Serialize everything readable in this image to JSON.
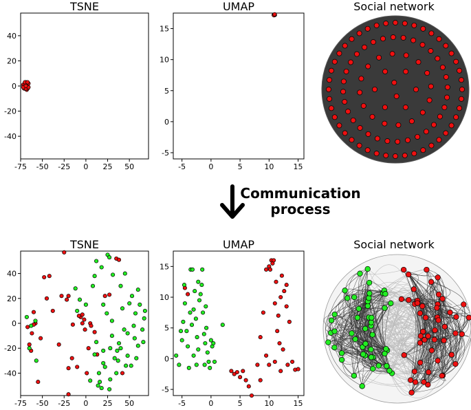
{
  "process": {
    "line1": "Communication",
    "line2": "process",
    "arrow_icon": "down-arrow-icon"
  },
  "colors": {
    "red": "#ee1111",
    "green": "#22ee22",
    "edge_dark": "#333333",
    "edge_light": "#bbbbbb",
    "network_fill": "#3a3a3a",
    "stroke": "#000000"
  },
  "chart_data": [
    {
      "id": "tsne_before",
      "type": "scatter",
      "title": "TSNE",
      "xlim": [
        -75,
        72
      ],
      "ylim": [
        -58,
        58
      ],
      "xticks": [
        -75,
        -50,
        -25,
        0,
        25,
        50
      ],
      "yticks": [
        -40,
        -20,
        0,
        20,
        40
      ],
      "series": [
        {
          "name": "red",
          "points": [
            [
              -71,
              0
            ],
            [
              -70,
              2
            ],
            [
              -69,
              -1
            ],
            [
              -68,
              1
            ],
            [
              -70,
              -2
            ],
            [
              -67,
              0
            ],
            [
              -72,
              1
            ],
            [
              -69,
              3
            ],
            [
              -68,
              -3
            ],
            [
              -66,
              2
            ],
            [
              -71,
              -2
            ],
            [
              -67,
              -2
            ],
            [
              -70,
              1
            ],
            [
              -69,
              -2
            ],
            [
              -68,
              0
            ],
            [
              -66,
              -1
            ],
            [
              -70,
              3
            ],
            [
              -67,
              3
            ],
            [
              -72,
              -1
            ],
            [
              -69,
              0
            ]
          ]
        }
      ]
    },
    {
      "id": "umap_before",
      "type": "scatter",
      "title": "UMAP",
      "xlim": [
        -6.5,
        16
      ],
      "ylim": [
        -6,
        17.5
      ],
      "xticks": [
        -5,
        0,
        5,
        10,
        15
      ],
      "yticks": [
        -5,
        0,
        5,
        10,
        15
      ],
      "series": [
        {
          "name": "red",
          "points": [
            [
              10.8,
              17.2
            ],
            [
              10.9,
              17.25
            ],
            [
              11.0,
              17.2
            ],
            [
              10.85,
              17.15
            ],
            [
              10.95,
              17.3
            ]
          ]
        }
      ]
    },
    {
      "id": "network_before",
      "type": "network",
      "title": "Social network",
      "node_count": 100,
      "groups": [
        {
          "name": "red",
          "count": 100
        }
      ]
    },
    {
      "id": "tsne_after",
      "type": "scatter",
      "title": "TSNE",
      "xlim": [
        -75,
        72
      ],
      "ylim": [
        -58,
        58
      ],
      "xticks": [
        -75,
        -50,
        -25,
        0,
        25,
        50
      ],
      "yticks": [
        -40,
        -20,
        0,
        20,
        40
      ],
      "series": [
        {
          "name": "red",
          "points": [
            [
              -60,
              9
            ],
            [
              -48,
              37
            ],
            [
              -42,
              38
            ],
            [
              -31,
              -17
            ],
            [
              -22,
              19
            ],
            [
              -20,
              22
            ],
            [
              -20,
              -36
            ],
            [
              -16,
              -28
            ],
            [
              -10,
              -35
            ],
            [
              -6,
              5
            ],
            [
              -4,
              0
            ],
            [
              -2,
              3
            ],
            [
              -1,
              -5
            ],
            [
              3,
              -20
            ],
            [
              5,
              0
            ],
            [
              6,
              -2
            ],
            [
              27,
              23
            ],
            [
              35,
              52
            ],
            [
              38,
              51
            ],
            [
              42,
              -40
            ],
            [
              -65,
              -17
            ],
            [
              -63,
              -22
            ],
            [
              -62,
              -8
            ],
            [
              -58,
              0
            ],
            [
              -55,
              -47
            ],
            [
              -52,
              -12
            ],
            [
              -45,
              20
            ],
            [
              -38,
              10
            ],
            [
              -25,
              57
            ],
            [
              -20,
              -57
            ],
            [
              -15,
              -1
            ],
            [
              -8,
              6
            ],
            [
              -4,
              7
            ],
            [
              10,
              -7
            ],
            [
              13,
              -25
            ],
            [
              22,
              22
            ],
            [
              -60,
              -1
            ],
            [
              -28,
              22
            ],
            [
              1,
              -40
            ],
            [
              -67,
              -3
            ]
          ]
        },
        {
          "name": "green",
          "points": [
            [
              -68,
              5
            ],
            [
              -63,
              -2
            ],
            [
              -58,
              2
            ],
            [
              -57,
              -30
            ],
            [
              -65,
              -20
            ],
            [
              -12,
              28
            ],
            [
              -7,
              19
            ],
            [
              0,
              15
            ],
            [
              10,
              -25
            ],
            [
              12,
              -15
            ],
            [
              14,
              -50
            ],
            [
              16,
              -47
            ],
            [
              18,
              -52
            ],
            [
              20,
              -32
            ],
            [
              22,
              -35
            ],
            [
              25,
              55
            ],
            [
              27,
              -53
            ],
            [
              28,
              -45
            ],
            [
              30,
              -10
            ],
            [
              33,
              -28
            ],
            [
              36,
              -22
            ],
            [
              37,
              -30
            ],
            [
              40,
              -20
            ],
            [
              42,
              12
            ],
            [
              44,
              -5
            ],
            [
              46,
              -34
            ],
            [
              48,
              -26
            ],
            [
              50,
              16
            ],
            [
              53,
              22
            ],
            [
              55,
              -2
            ],
            [
              57,
              8
            ],
            [
              58,
              -28
            ],
            [
              60,
              -18
            ],
            [
              62,
              15
            ],
            [
              65,
              -5
            ],
            [
              67,
              4
            ],
            [
              68,
              10
            ],
            [
              12,
              50
            ],
            [
              18,
              45
            ],
            [
              27,
              53
            ],
            [
              31,
              39
            ],
            [
              24,
              8
            ],
            [
              38,
              -16
            ],
            [
              45,
              40
            ],
            [
              8,
              30
            ],
            [
              5,
              -46
            ],
            [
              15,
              -40
            ],
            [
              20,
              -22
            ],
            [
              30,
              2
            ],
            [
              52,
              -34
            ],
            [
              56,
              -12
            ],
            [
              60,
              27
            ],
            [
              66,
              -15
            ],
            [
              -10,
              10
            ],
            [
              10,
              38
            ],
            [
              35,
              -40
            ],
            [
              20,
              15
            ],
            [
              48,
              -8
            ],
            [
              28,
              -20
            ],
            [
              40,
              30
            ]
          ]
        }
      ]
    },
    {
      "id": "umap_after",
      "type": "scatter",
      "title": "UMAP",
      "xlim": [
        -6.5,
        16
      ],
      "ylim": [
        -6,
        17.5
      ],
      "xticks": [
        -5,
        0,
        5,
        10,
        15
      ],
      "yticks": [
        -5,
        0,
        5,
        10,
        15
      ],
      "series": [
        {
          "name": "red",
          "points": [
            [
              -4.5,
              11.5
            ],
            [
              -4,
              10.5
            ],
            [
              3.5,
              -2
            ],
            [
              4,
              -2.5
            ],
            [
              4.5,
              -2.2
            ],
            [
              5,
              -3
            ],
            [
              5.5,
              -2
            ],
            [
              6,
              -3.5
            ],
            [
              6.5,
              -4.5
            ],
            [
              7,
              -6
            ],
            [
              8,
              -1
            ],
            [
              8.5,
              3.5
            ],
            [
              9,
              7.5
            ],
            [
              9.5,
              0.5
            ],
            [
              10,
              15
            ],
            [
              10.2,
              14.5
            ],
            [
              10.4,
              16
            ],
            [
              10.6,
              15.5
            ],
            [
              10.8,
              16
            ],
            [
              11,
              9
            ],
            [
              11.2,
              12.5
            ],
            [
              11.4,
              4.5
            ],
            [
              11.6,
              7
            ],
            [
              11.8,
              2.5
            ],
            [
              12,
              10
            ],
            [
              12.2,
              13.5
            ],
            [
              12.4,
              1.5
            ],
            [
              12.6,
              11
            ],
            [
              13,
              8.5
            ],
            [
              13.2,
              -1
            ],
            [
              13.5,
              6
            ],
            [
              14,
              -0.5
            ],
            [
              14.5,
              -1.8
            ],
            [
              15,
              -1.7
            ],
            [
              10,
              -1
            ],
            [
              11,
              -0.5
            ],
            [
              12,
              -2
            ],
            [
              9.5,
              14.5
            ],
            [
              13,
              12
            ],
            [
              8.5,
              -3.5
            ]
          ]
        },
        {
          "name": "green",
          "points": [
            [
              -6,
              0.5
            ],
            [
              -5.5,
              -1
            ],
            [
              -5,
              3
            ],
            [
              -4.8,
              6
            ],
            [
              -4.5,
              9
            ],
            [
              -4.2,
              4.5
            ],
            [
              -4,
              2
            ],
            [
              -3.8,
              -1.5
            ],
            [
              -3.5,
              14.5
            ],
            [
              -3.2,
              14.5
            ],
            [
              -3,
              8
            ],
            [
              -2.8,
              11
            ],
            [
              -2.6,
              6.5
            ],
            [
              -2.4,
              3.5
            ],
            [
              -2.2,
              1.5
            ],
            [
              -2,
              9.5
            ],
            [
              -1.8,
              10.5
            ],
            [
              -1.6,
              12
            ],
            [
              -1.5,
              14.5
            ],
            [
              -1.4,
              7.5
            ],
            [
              -1.2,
              4
            ],
            [
              -1,
              2.5
            ],
            [
              -0.8,
              5
            ],
            [
              -0.6,
              1
            ],
            [
              -0.4,
              -0.5
            ],
            [
              -0.2,
              -1.5
            ],
            [
              0,
              3
            ],
            [
              0.2,
              2
            ],
            [
              0.4,
              2.5
            ],
            [
              0.6,
              -0.5
            ],
            [
              -3,
              0.5
            ],
            [
              -2.5,
              -1
            ],
            [
              -3.3,
              5.5
            ],
            [
              2,
              5.5
            ],
            [
              -0.9,
              8.5
            ],
            [
              -2.2,
              12.5
            ],
            [
              -4.6,
              12
            ],
            [
              -1.1,
              -1
            ],
            [
              -3.6,
              7.5
            ],
            [
              -5.2,
              4.5
            ]
          ]
        }
      ]
    },
    {
      "id": "network_after",
      "type": "network",
      "title": "Social network",
      "node_count": 100,
      "groups": [
        {
          "name": "green",
          "count": 50
        },
        {
          "name": "red",
          "count": 50
        }
      ]
    }
  ]
}
